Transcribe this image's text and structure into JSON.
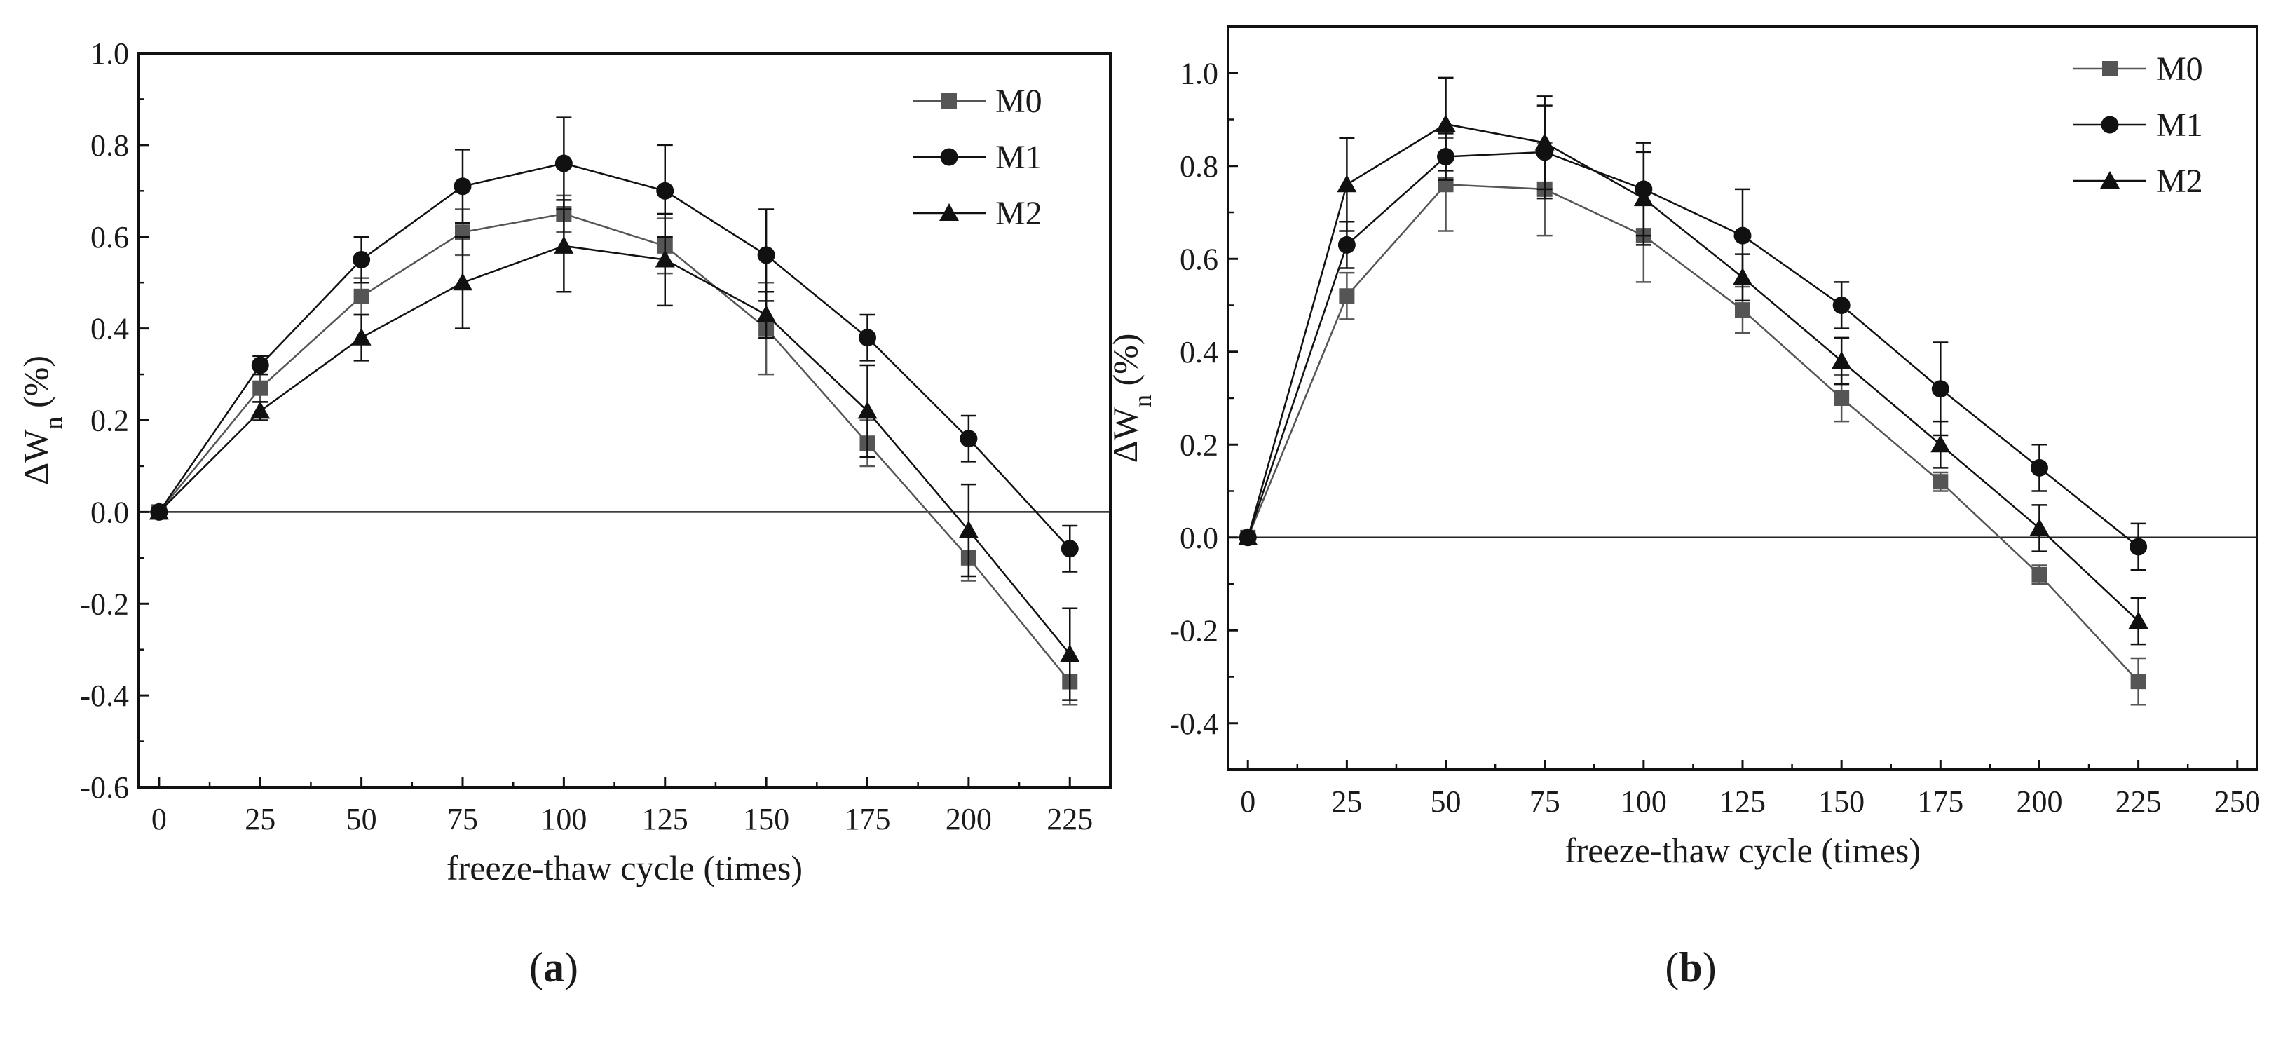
{
  "chart_data": [
    {
      "type": "line",
      "panel_label": "a",
      "xlabel": "freeze-thaw cycle (times)",
      "ylabel_main": "ΔW",
      "ylabel_sub": "n",
      "ylabel_unit": " (%)",
      "xlim": [
        -5,
        235
      ],
      "ylim": [
        -0.6,
        1.0
      ],
      "xticks": [
        0,
        25,
        50,
        75,
        100,
        125,
        150,
        175,
        200,
        225
      ],
      "yticks": [
        -0.6,
        -0.4,
        -0.2,
        0.0,
        0.2,
        0.4,
        0.6,
        0.8,
        1.0
      ],
      "ytick_labels": [
        "-0.6",
        "-0.4",
        "-0.2",
        "0.0",
        "0.2",
        "0.4",
        "0.6",
        "0.8",
        "1.0"
      ],
      "zero_line": true,
      "legend_position": "top-right",
      "x": [
        0,
        25,
        50,
        75,
        100,
        125,
        150,
        175,
        200,
        225
      ],
      "series": [
        {
          "name": "M0",
          "marker": "square",
          "color": "#555555",
          "values": [
            0.0,
            0.27,
            0.47,
            0.61,
            0.65,
            0.58,
            0.4,
            0.15,
            -0.1,
            -0.37
          ],
          "errors": [
            0.0,
            0.03,
            0.04,
            0.05,
            0.04,
            0.06,
            0.1,
            0.05,
            0.05,
            0.05
          ]
        },
        {
          "name": "M1",
          "marker": "circle",
          "color": "#111111",
          "values": [
            0.0,
            0.32,
            0.55,
            0.71,
            0.76,
            0.7,
            0.56,
            0.38,
            0.16,
            -0.08
          ],
          "errors": [
            0.0,
            0.02,
            0.05,
            0.08,
            0.1,
            0.1,
            0.1,
            0.05,
            0.05,
            0.05
          ]
        },
        {
          "name": "M2",
          "marker": "triangle",
          "color": "#111111",
          "values": [
            0.0,
            0.22,
            0.38,
            0.5,
            0.58,
            0.55,
            0.43,
            0.22,
            -0.04,
            -0.31
          ],
          "errors": [
            0.0,
            0.02,
            0.05,
            0.1,
            0.1,
            0.1,
            0.05,
            0.1,
            0.1,
            0.1
          ]
        }
      ]
    },
    {
      "type": "line",
      "panel_label": "b",
      "xlabel": "freeze-thaw cycle (times)",
      "ylabel_main": "ΔW",
      "ylabel_sub": "n",
      "ylabel_unit": " (%)",
      "xlim": [
        -5,
        255
      ],
      "ylim": [
        -0.5,
        1.1
      ],
      "xticks": [
        0,
        25,
        50,
        75,
        100,
        125,
        150,
        175,
        200,
        225,
        250
      ],
      "yticks": [
        -0.4,
        -0.2,
        0.0,
        0.2,
        0.4,
        0.6,
        0.8,
        1.0
      ],
      "ytick_labels": [
        "-0.4",
        "-0.2",
        "0.0",
        "0.2",
        "0.4",
        "0.6",
        "0.8",
        "1.0"
      ],
      "zero_line": true,
      "legend_position": "top-right",
      "x": [
        0,
        25,
        50,
        75,
        100,
        125,
        150,
        175,
        200,
        225
      ],
      "series": [
        {
          "name": "M0",
          "marker": "square",
          "color": "#555555",
          "values": [
            0.0,
            0.52,
            0.76,
            0.75,
            0.65,
            0.49,
            0.3,
            0.12,
            -0.08,
            -0.31
          ],
          "errors": [
            0.0,
            0.05,
            0.1,
            0.1,
            0.1,
            0.05,
            0.05,
            0.02,
            0.02,
            0.05
          ]
        },
        {
          "name": "M1",
          "marker": "circle",
          "color": "#111111",
          "values": [
            0.0,
            0.63,
            0.82,
            0.83,
            0.75,
            0.65,
            0.5,
            0.32,
            0.15,
            -0.02
          ],
          "errors": [
            0.0,
            0.05,
            0.05,
            0.1,
            0.1,
            0.1,
            0.05,
            0.1,
            0.05,
            0.05
          ]
        },
        {
          "name": "M2",
          "marker": "triangle",
          "color": "#111111",
          "values": [
            0.0,
            0.76,
            0.89,
            0.85,
            0.73,
            0.56,
            0.38,
            0.2,
            0.02,
            -0.18
          ],
          "errors": [
            0.0,
            0.1,
            0.1,
            0.1,
            0.1,
            0.05,
            0.05,
            0.05,
            0.05,
            0.05
          ]
        }
      ]
    }
  ]
}
